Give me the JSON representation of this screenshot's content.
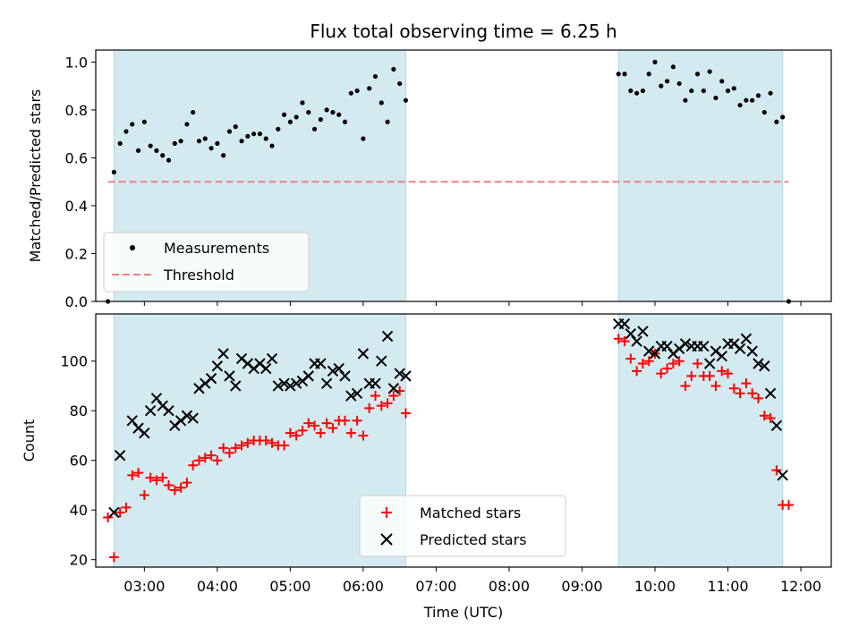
{
  "title": "Flux total observing time = 6.25 h",
  "colors": {
    "shade": "#d3eaf0",
    "threshold": "#f08080",
    "matched": "#ff0000",
    "predicted": "#000000",
    "measurement": "#000000"
  },
  "chart_data": [
    {
      "type": "scatter",
      "panel": "top",
      "ylabel": "Matched/Predicted stars",
      "xlim": [
        "02:20",
        "12:25"
      ],
      "ylim": [
        0,
        1.05
      ],
      "yticks": [
        "0.0",
        "0.2",
        "0.4",
        "0.6",
        "0.8",
        "1.0"
      ],
      "legend": {
        "placement": "lower-left",
        "entries": [
          "Measurements",
          "Threshold"
        ]
      },
      "shaded_intervals": [
        [
          "02:35",
          "06:35"
        ],
        [
          "09:30",
          "11:45"
        ]
      ],
      "threshold": {
        "name": "Threshold",
        "value": 0.5,
        "x_range": [
          "02:30",
          "11:50"
        ],
        "style": "dashed"
      },
      "series": [
        {
          "name": "Measurements",
          "marker": "dot",
          "points": [
            [
              "02:30",
              0.0
            ],
            [
              "02:35",
              0.54
            ],
            [
              "02:40",
              0.66
            ],
            [
              "02:45",
              0.71
            ],
            [
              "02:50",
              0.74
            ],
            [
              "02:55",
              0.63
            ],
            [
              "03:00",
              0.75
            ],
            [
              "03:05",
              0.65
            ],
            [
              "03:10",
              0.63
            ],
            [
              "03:15",
              0.61
            ],
            [
              "03:20",
              0.59
            ],
            [
              "03:25",
              0.66
            ],
            [
              "03:30",
              0.67
            ],
            [
              "03:35",
              0.74
            ],
            [
              "03:40",
              0.79
            ],
            [
              "03:45",
              0.67
            ],
            [
              "03:50",
              0.68
            ],
            [
              "03:55",
              0.64
            ],
            [
              "04:00",
              0.66
            ],
            [
              "04:05",
              0.61
            ],
            [
              "04:10",
              0.71
            ],
            [
              "04:15",
              0.73
            ],
            [
              "04:20",
              0.67
            ],
            [
              "04:25",
              0.69
            ],
            [
              "04:30",
              0.7
            ],
            [
              "04:35",
              0.7
            ],
            [
              "04:40",
              0.68
            ],
            [
              "04:45",
              0.65
            ],
            [
              "04:50",
              0.72
            ],
            [
              "04:55",
              0.78
            ],
            [
              "05:00",
              0.75
            ],
            [
              "05:05",
              0.77
            ],
            [
              "05:10",
              0.83
            ],
            [
              "05:15",
              0.79
            ],
            [
              "05:20",
              0.72
            ],
            [
              "05:25",
              0.76
            ],
            [
              "05:30",
              0.8
            ],
            [
              "05:35",
              0.79
            ],
            [
              "05:40",
              0.78
            ],
            [
              "05:45",
              0.75
            ],
            [
              "05:50",
              0.87
            ],
            [
              "05:55",
              0.88
            ],
            [
              "06:00",
              0.68
            ],
            [
              "06:05",
              0.89
            ],
            [
              "06:10",
              0.94
            ],
            [
              "06:15",
              0.83
            ],
            [
              "06:20",
              0.75
            ],
            [
              "06:25",
              0.97
            ],
            [
              "06:30",
              0.91
            ],
            [
              "06:35",
              0.84
            ],
            [
              "09:30",
              0.95
            ],
            [
              "09:35",
              0.95
            ],
            [
              "09:40",
              0.88
            ],
            [
              "09:45",
              0.87
            ],
            [
              "09:50",
              0.88
            ],
            [
              "09:55",
              0.95
            ],
            [
              "10:00",
              1.0
            ],
            [
              "10:05",
              0.9
            ],
            [
              "10:10",
              0.92
            ],
            [
              "10:15",
              0.98
            ],
            [
              "10:20",
              0.91
            ],
            [
              "10:25",
              0.84
            ],
            [
              "10:30",
              0.88
            ],
            [
              "10:35",
              0.95
            ],
            [
              "10:40",
              0.88
            ],
            [
              "10:45",
              0.96
            ],
            [
              "10:50",
              0.85
            ],
            [
              "10:55",
              0.92
            ],
            [
              "11:00",
              0.88
            ],
            [
              "11:05",
              0.89
            ],
            [
              "11:10",
              0.82
            ],
            [
              "11:15",
              0.84
            ],
            [
              "11:20",
              0.84
            ],
            [
              "11:25",
              0.86
            ],
            [
              "11:30",
              0.79
            ],
            [
              "11:35",
              0.87
            ],
            [
              "11:40",
              0.75
            ],
            [
              "11:45",
              0.77
            ],
            [
              "11:50",
              0.0
            ]
          ]
        }
      ]
    },
    {
      "type": "scatter",
      "panel": "bottom",
      "xlabel": "Time (UTC)",
      "ylabel": "Count",
      "xlim": [
        "02:20",
        "12:25"
      ],
      "ylim": [
        17,
        119
      ],
      "yticks": [
        "20",
        "40",
        "60",
        "80",
        "100"
      ],
      "xticks": [
        "03:00",
        "04:00",
        "05:00",
        "06:00",
        "07:00",
        "08:00",
        "09:00",
        "10:00",
        "11:00",
        "12:00"
      ],
      "legend": {
        "placement": "lower-center",
        "entries": [
          "Matched stars",
          "Predicted stars"
        ]
      },
      "shaded_intervals": [
        [
          "02:35",
          "06:35"
        ],
        [
          "09:30",
          "11:45"
        ]
      ],
      "series": [
        {
          "name": "Matched stars",
          "marker": "plus",
          "points": [
            [
              "02:30",
              37
            ],
            [
              "02:35",
              21
            ],
            [
              "02:40",
              39
            ],
            [
              "02:45",
              41
            ],
            [
              "02:50",
              54
            ],
            [
              "02:55",
              55
            ],
            [
              "03:00",
              46
            ],
            [
              "03:05",
              53
            ],
            [
              "03:10",
              52
            ],
            [
              "03:15",
              53
            ],
            [
              "03:20",
              50
            ],
            [
              "03:25",
              48
            ],
            [
              "03:30",
              49
            ],
            [
              "03:35",
              51
            ],
            [
              "03:40",
              58
            ],
            [
              "03:45",
              60
            ],
            [
              "03:50",
              61
            ],
            [
              "03:55",
              62
            ],
            [
              "04:00",
              60
            ],
            [
              "04:05",
              65
            ],
            [
              "04:10",
              63
            ],
            [
              "04:15",
              65
            ],
            [
              "04:20",
              66
            ],
            [
              "04:25",
              67
            ],
            [
              "04:30",
              68
            ],
            [
              "04:35",
              68
            ],
            [
              "04:40",
              68
            ],
            [
              "04:45",
              67
            ],
            [
              "04:50",
              66
            ],
            [
              "04:55",
              66
            ],
            [
              "05:00",
              71
            ],
            [
              "05:05",
              70
            ],
            [
              "05:10",
              72
            ],
            [
              "05:15",
              75
            ],
            [
              "05:20",
              74
            ],
            [
              "05:25",
              71
            ],
            [
              "05:30",
              75
            ],
            [
              "05:35",
              73
            ],
            [
              "05:40",
              76
            ],
            [
              "05:45",
              76
            ],
            [
              "05:50",
              71
            ],
            [
              "05:55",
              76
            ],
            [
              "06:00",
              70
            ],
            [
              "06:05",
              81
            ],
            [
              "06:10",
              86
            ],
            [
              "06:15",
              82
            ],
            [
              "06:20",
              83
            ],
            [
              "06:25",
              86
            ],
            [
              "06:30",
              88
            ],
            [
              "06:35",
              79
            ],
            [
              "09:30",
              109
            ],
            [
              "09:35",
              108
            ],
            [
              "09:40",
              101
            ],
            [
              "09:45",
              96
            ],
            [
              "09:50",
              99
            ],
            [
              "09:55",
              100
            ],
            [
              "10:00",
              103
            ],
            [
              "10:05",
              95
            ],
            [
              "10:10",
              97
            ],
            [
              "10:15",
              99
            ],
            [
              "10:20",
              100
            ],
            [
              "10:25",
              90
            ],
            [
              "10:30",
              94
            ],
            [
              "10:35",
              99
            ],
            [
              "10:40",
              94
            ],
            [
              "10:45",
              94
            ],
            [
              "10:50",
              90
            ],
            [
              "10:55",
              96
            ],
            [
              "11:00",
              95
            ],
            [
              "11:05",
              89
            ],
            [
              "11:10",
              87
            ],
            [
              "11:15",
              91
            ],
            [
              "11:20",
              87
            ],
            [
              "11:25",
              85
            ],
            [
              "11:30",
              78
            ],
            [
              "11:35",
              77
            ],
            [
              "11:40",
              56
            ],
            [
              "11:45",
              42
            ],
            [
              "11:50",
              42
            ]
          ]
        },
        {
          "name": "Predicted stars",
          "marker": "cross",
          "points": [
            [
              "02:35",
              39
            ],
            [
              "02:40",
              62
            ],
            [
              "02:50",
              76
            ],
            [
              "02:55",
              73
            ],
            [
              "03:00",
              71
            ],
            [
              "03:05",
              80
            ],
            [
              "03:10",
              85
            ],
            [
              "03:15",
              82
            ],
            [
              "03:20",
              80
            ],
            [
              "03:25",
              74
            ],
            [
              "03:30",
              76
            ],
            [
              "03:35",
              78
            ],
            [
              "03:40",
              77
            ],
            [
              "03:45",
              89
            ],
            [
              "03:50",
              91
            ],
            [
              "03:55",
              93
            ],
            [
              "04:00",
              98
            ],
            [
              "04:05",
              103
            ],
            [
              "04:10",
              94
            ],
            [
              "04:15",
              90
            ],
            [
              "04:20",
              101
            ],
            [
              "04:25",
              99
            ],
            [
              "04:30",
              97
            ],
            [
              "04:35",
              99
            ],
            [
              "04:40",
              97
            ],
            [
              "04:45",
              101
            ],
            [
              "04:50",
              90
            ],
            [
              "04:55",
              91
            ],
            [
              "05:00",
              90
            ],
            [
              "05:05",
              91
            ],
            [
              "05:10",
              92
            ],
            [
              "05:15",
              94
            ],
            [
              "05:20",
              99
            ],
            [
              "05:25",
              99
            ],
            [
              "05:30",
              91
            ],
            [
              "05:35",
              96
            ],
            [
              "05:40",
              97
            ],
            [
              "05:45",
              94
            ],
            [
              "05:50",
              86
            ],
            [
              "05:55",
              87
            ],
            [
              "06:00",
              103
            ],
            [
              "06:05",
              91
            ],
            [
              "06:10",
              91
            ],
            [
              "06:15",
              100
            ],
            [
              "06:20",
              110
            ],
            [
              "06:25",
              89
            ],
            [
              "06:30",
              95
            ],
            [
              "06:35",
              94
            ],
            [
              "09:30",
              115
            ],
            [
              "09:35",
              115
            ],
            [
              "09:40",
              111
            ],
            [
              "09:45",
              108
            ],
            [
              "09:50",
              112
            ],
            [
              "09:55",
              104
            ],
            [
              "10:00",
              103
            ],
            [
              "10:05",
              106
            ],
            [
              "10:10",
              106
            ],
            [
              "10:15",
              103
            ],
            [
              "10:20",
              105
            ],
            [
              "10:25",
              107
            ],
            [
              "10:30",
              106
            ],
            [
              "10:35",
              106
            ],
            [
              "10:40",
              106
            ],
            [
              "10:45",
              99
            ],
            [
              "10:50",
              104
            ],
            [
              "10:55",
              102
            ],
            [
              "11:00",
              107
            ],
            [
              "11:05",
              107
            ],
            [
              "11:10",
              105
            ],
            [
              "11:15",
              109
            ],
            [
              "11:20",
              104
            ],
            [
              "11:25",
              99
            ],
            [
              "11:30",
              98
            ],
            [
              "11:35",
              87
            ],
            [
              "11:40",
              74
            ],
            [
              "11:45",
              54
            ]
          ]
        }
      ]
    }
  ]
}
